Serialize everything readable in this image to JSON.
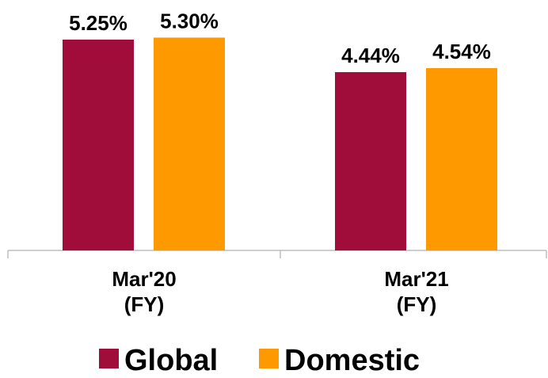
{
  "chart_data": {
    "type": "bar",
    "categories": [
      "Mar'20\n(FY)",
      "Mar'21\n(FY)"
    ],
    "series": [
      {
        "name": "Global",
        "color": "#a00d3a",
        "values": [
          5.25,
          4.44
        ],
        "value_labels": [
          "5.25%",
          "4.44%"
        ]
      },
      {
        "name": "Domestic",
        "color": "#ff9900",
        "values": [
          5.3,
          4.54
        ],
        "value_labels": [
          "5.30%",
          "4.54%"
        ]
      }
    ],
    "ylim": [
      0,
      6
    ],
    "legend": "bottom"
  }
}
